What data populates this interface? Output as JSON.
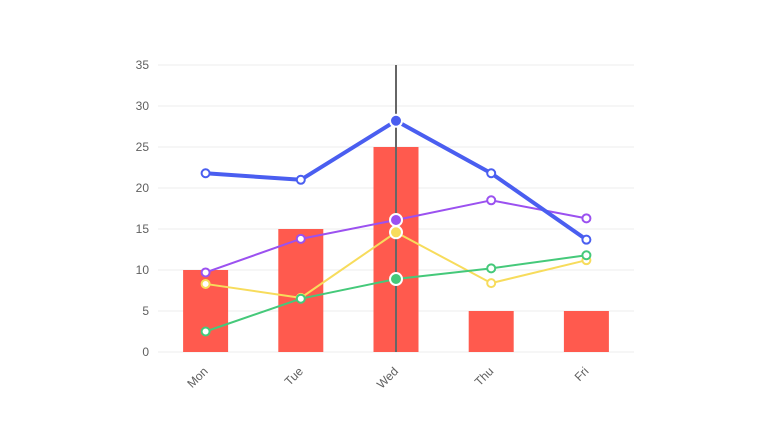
{
  "chart_data": {
    "type": "bar",
    "categories": [
      "Mon",
      "Tue",
      "Wed",
      "Thu",
      "Fri"
    ],
    "ylim": [
      0,
      35
    ],
    "yticks": [
      0,
      5,
      10,
      15,
      20,
      25,
      30,
      35
    ],
    "grid": true,
    "highlighted_category": "Wed",
    "bar_series": {
      "values": [
        10,
        15,
        25,
        5,
        5
      ],
      "color": "#ff5a4e"
    },
    "line_series": [
      {
        "values": [
          21.8,
          21.0,
          28.2,
          21.8,
          13.7
        ],
        "color": "#4a5ef0",
        "width": 4
      },
      {
        "values": [
          9.7,
          13.8,
          16.1,
          18.5,
          16.3
        ],
        "color": "#9b51f0",
        "width": 2
      },
      {
        "values": [
          8.3,
          6.6,
          14.6,
          8.4,
          11.2
        ],
        "color": "#f7dc5c",
        "width": 2
      },
      {
        "values": [
          2.5,
          6.5,
          8.9,
          10.2,
          11.8
        ],
        "color": "#45c97a",
        "width": 2
      }
    ]
  }
}
